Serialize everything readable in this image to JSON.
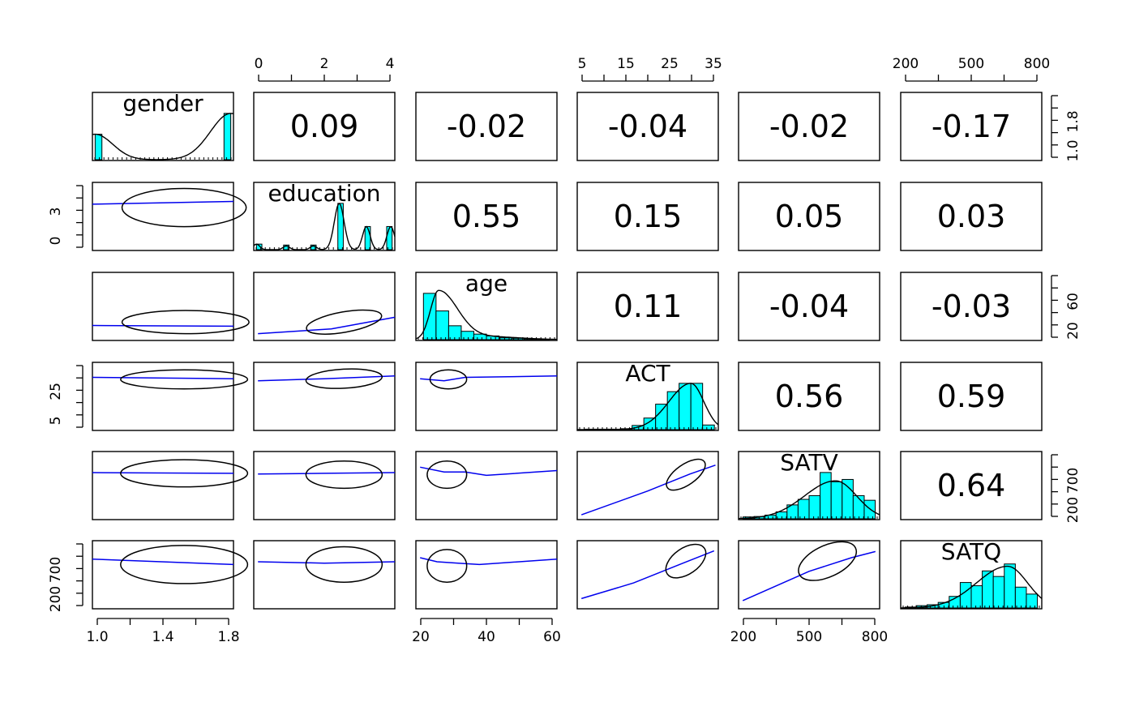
{
  "chart_data": {
    "type": "scatter-matrix",
    "variables": [
      "gender",
      "education",
      "age",
      "ACT",
      "SATV",
      "SATQ"
    ],
    "hist_color": "#00ffff",
    "loess_color": "#0000ee",
    "correlations": [
      {
        "row": 0,
        "col": 1,
        "label": "0.09"
      },
      {
        "row": 0,
        "col": 2,
        "label": "-0.02"
      },
      {
        "row": 0,
        "col": 3,
        "label": "-0.04"
      },
      {
        "row": 0,
        "col": 4,
        "label": "-0.02"
      },
      {
        "row": 0,
        "col": 5,
        "label": "-0.17"
      },
      {
        "row": 1,
        "col": 2,
        "label": "0.55"
      },
      {
        "row": 1,
        "col": 3,
        "label": "0.15"
      },
      {
        "row": 1,
        "col": 4,
        "label": "0.05"
      },
      {
        "row": 1,
        "col": 5,
        "label": "0.03"
      },
      {
        "row": 2,
        "col": 3,
        "label": "0.11"
      },
      {
        "row": 2,
        "col": 4,
        "label": "-0.04"
      },
      {
        "row": 2,
        "col": 5,
        "label": "-0.03"
      },
      {
        "row": 3,
        "col": 4,
        "label": "0.56"
      },
      {
        "row": 3,
        "col": 5,
        "label": "0.59"
      },
      {
        "row": 4,
        "col": 5,
        "label": "0.64"
      }
    ],
    "axes": {
      "bottom": [
        {
          "col": 0,
          "ticks": [
            "1.0",
            "1.4",
            "1.8"
          ]
        },
        {
          "col": 2,
          "ticks": [
            "20",
            "40",
            "60"
          ]
        },
        {
          "col": 4,
          "ticks": [
            "200",
            "500",
            "800"
          ]
        }
      ],
      "top": [
        {
          "col": 1,
          "ticks": [
            "0",
            "2",
            "4"
          ]
        },
        {
          "col": 3,
          "ticks": [
            "5",
            "15",
            "25",
            "35"
          ]
        },
        {
          "col": 5,
          "ticks": [
            "200",
            "500",
            "800"
          ]
        }
      ],
      "left": [
        {
          "row": 1,
          "ticks": [
            "0",
            "3"
          ]
        },
        {
          "row": 3,
          "ticks": [
            "5",
            "25"
          ]
        },
        {
          "row": 5,
          "ticks": [
            "200",
            "700"
          ]
        }
      ],
      "right": [
        {
          "row": 0,
          "ticks": [
            "1.0",
            "1.8"
          ]
        },
        {
          "row": 2,
          "ticks": [
            "20",
            "60"
          ]
        },
        {
          "row": 4,
          "ticks": [
            "200",
            "700"
          ]
        }
      ]
    },
    "histograms": {
      "gender": [
        {
          "x0": 1.0,
          "x1": 1.05,
          "h": 0.55
        },
        {
          "x0": 1.95,
          "x1": 2.0,
          "h": 1.0
        }
      ],
      "education": [
        {
          "x0": 0,
          "x1": 0.2,
          "h": 0.12
        },
        {
          "x0": 1,
          "x1": 1.2,
          "h": 0.1
        },
        {
          "x0": 2,
          "x1": 2.2,
          "h": 0.1
        },
        {
          "x0": 3,
          "x1": 3.2,
          "h": 1.0
        },
        {
          "x0": 4,
          "x1": 4.2,
          "h": 0.5
        },
        {
          "x0": 4.8,
          "x1": 5,
          "h": 0.5
        }
      ],
      "age": [
        {
          "x0": 13,
          "x1": 18,
          "h": 1.0
        },
        {
          "x0": 18,
          "x1": 23,
          "h": 0.62
        },
        {
          "x0": 23,
          "x1": 28,
          "h": 0.3
        },
        {
          "x0": 28,
          "x1": 33,
          "h": 0.18
        },
        {
          "x0": 33,
          "x1": 38,
          "h": 0.12
        },
        {
          "x0": 38,
          "x1": 43,
          "h": 0.08
        },
        {
          "x0": 43,
          "x1": 48,
          "h": 0.04
        },
        {
          "x0": 48,
          "x1": 53,
          "h": 0.03
        },
        {
          "x0": 53,
          "x1": 58,
          "h": 0.02
        },
        {
          "x0": 58,
          "x1": 63,
          "h": 0.01
        }
      ],
      "ACT": [
        {
          "x0": 3,
          "x1": 6,
          "h": 0.01
        },
        {
          "x0": 6,
          "x1": 9,
          "h": 0.01
        },
        {
          "x0": 9,
          "x1": 12,
          "h": 0.01
        },
        {
          "x0": 12,
          "x1": 15,
          "h": 0.02
        },
        {
          "x0": 15,
          "x1": 18,
          "h": 0.09
        },
        {
          "x0": 18,
          "x1": 21,
          "h": 0.25
        },
        {
          "x0": 21,
          "x1": 24,
          "h": 0.55
        },
        {
          "x0": 24,
          "x1": 27,
          "h": 0.82
        },
        {
          "x0": 27,
          "x1": 30,
          "h": 1.0
        },
        {
          "x0": 30,
          "x1": 33,
          "h": 1.0
        },
        {
          "x0": 33,
          "x1": 36,
          "h": 0.1
        }
      ],
      "SATV": [
        {
          "x0": 200,
          "x1": 250,
          "h": 0.04
        },
        {
          "x0": 250,
          "x1": 300,
          "h": 0.05
        },
        {
          "x0": 300,
          "x1": 350,
          "h": 0.08
        },
        {
          "x0": 350,
          "x1": 400,
          "h": 0.15
        },
        {
          "x0": 400,
          "x1": 450,
          "h": 0.3
        },
        {
          "x0": 450,
          "x1": 500,
          "h": 0.42
        },
        {
          "x0": 500,
          "x1": 550,
          "h": 0.5
        },
        {
          "x0": 550,
          "x1": 600,
          "h": 1.0
        },
        {
          "x0": 600,
          "x1": 650,
          "h": 0.8
        },
        {
          "x0": 650,
          "x1": 700,
          "h": 0.85
        },
        {
          "x0": 700,
          "x1": 750,
          "h": 0.5
        },
        {
          "x0": 750,
          "x1": 800,
          "h": 0.4
        }
      ],
      "SATQ": [
        {
          "x0": 200,
          "x1": 250,
          "h": 0.02
        },
        {
          "x0": 250,
          "x1": 300,
          "h": 0.05
        },
        {
          "x0": 300,
          "x1": 350,
          "h": 0.07
        },
        {
          "x0": 350,
          "x1": 400,
          "h": 0.12
        },
        {
          "x0": 400,
          "x1": 450,
          "h": 0.25
        },
        {
          "x0": 450,
          "x1": 500,
          "h": 0.55
        },
        {
          "x0": 500,
          "x1": 550,
          "h": 0.48
        },
        {
          "x0": 550,
          "x1": 600,
          "h": 0.8
        },
        {
          "x0": 600,
          "x1": 650,
          "h": 0.68
        },
        {
          "x0": 650,
          "x1": 700,
          "h": 0.95
        },
        {
          "x0": 700,
          "x1": 750,
          "h": 0.45
        },
        {
          "x0": 750,
          "x1": 800,
          "h": 0.3
        }
      ]
    },
    "ranges": {
      "gender": [
        0.98,
        2.02
      ],
      "education": [
        -0.1,
        5.1
      ],
      "age": [
        10,
        66
      ],
      "ACT": [
        1,
        37
      ],
      "SATV": [
        180,
        820
      ],
      "SATQ": [
        180,
        820
      ]
    }
  }
}
